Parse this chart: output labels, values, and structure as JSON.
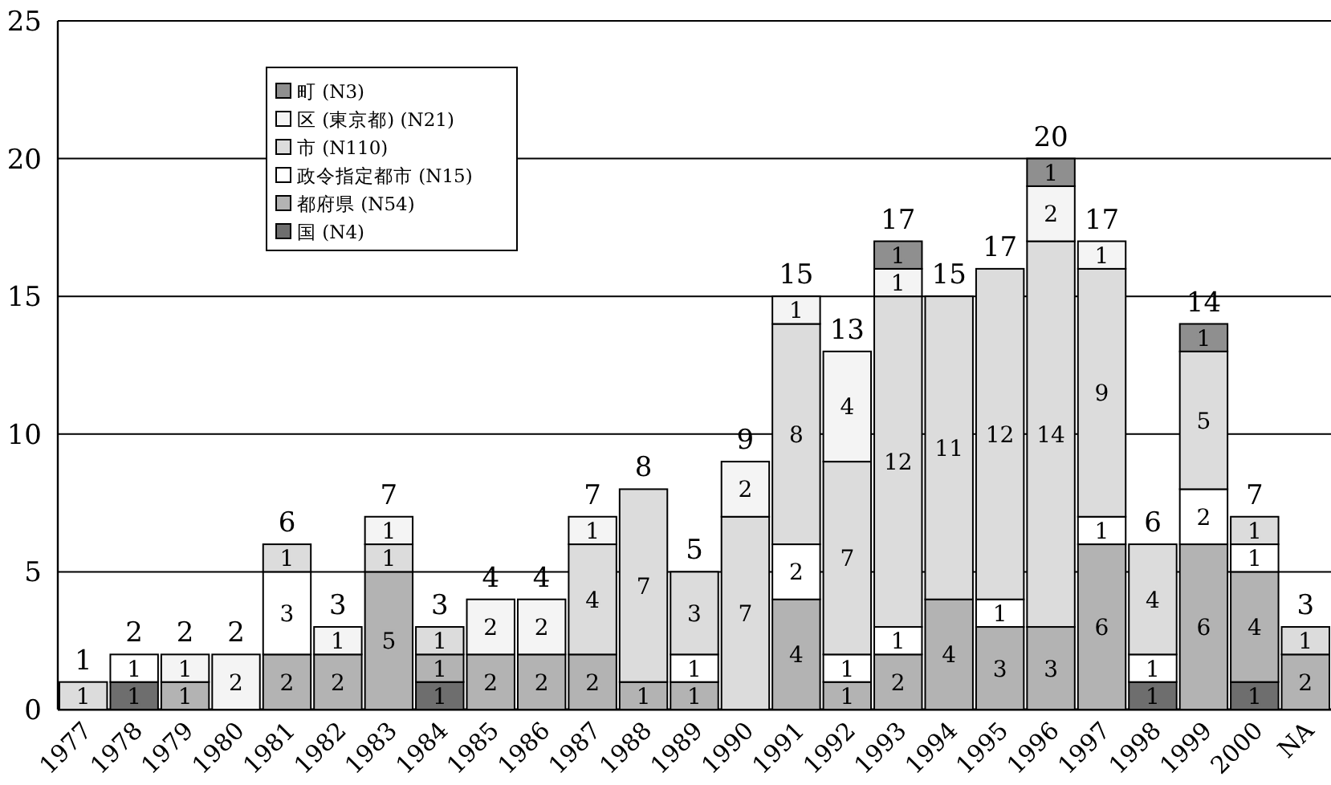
{
  "chart_data": {
    "type": "bar",
    "stacked": true,
    "categories": [
      "1977",
      "1978",
      "1979",
      "1980",
      "1981",
      "1982",
      "1983",
      "1984",
      "1985",
      "1986",
      "1987",
      "1988",
      "1989",
      "1990",
      "1991",
      "1992",
      "1993",
      "1994",
      "1995",
      "1996",
      "1997",
      "1998",
      "1999",
      "2000",
      "NA"
    ],
    "series": [
      {
        "name": "国 (N4)",
        "color": "#6e6e6e",
        "values": [
          null,
          1,
          null,
          null,
          null,
          null,
          null,
          1,
          null,
          null,
          null,
          null,
          null,
          null,
          null,
          null,
          null,
          null,
          null,
          null,
          null,
          1,
          null,
          1,
          null
        ]
      },
      {
        "name": "都府県 (N54)",
        "color": "#b3b3b3",
        "values": [
          null,
          null,
          1,
          null,
          2,
          2,
          5,
          1,
          2,
          2,
          2,
          1,
          1,
          null,
          4,
          1,
          2,
          4,
          3,
          3,
          6,
          null,
          6,
          4,
          2
        ]
      },
      {
        "name": "政令指定都市 (N15)",
        "color": "#ffffff",
        "values": [
          null,
          1,
          null,
          null,
          3,
          null,
          null,
          null,
          null,
          null,
          null,
          null,
          1,
          null,
          2,
          1,
          1,
          null,
          1,
          null,
          1,
          1,
          2,
          1,
          null
        ]
      },
      {
        "name": "市 (N110)",
        "color": "#dcdcdc",
        "values": [
          1,
          null,
          null,
          null,
          1,
          null,
          1,
          1,
          null,
          null,
          4,
          7,
          3,
          7,
          8,
          7,
          12,
          11,
          12,
          14,
          9,
          4,
          5,
          1,
          1
        ]
      },
      {
        "name": "区 (東京都) (N21)",
        "color": "#f4f4f4",
        "values": [
          null,
          null,
          1,
          2,
          null,
          1,
          1,
          null,
          2,
          2,
          1,
          null,
          null,
          2,
          1,
          4,
          1,
          null,
          null,
          2,
          1,
          null,
          null,
          null,
          null
        ]
      },
      {
        "name": "町 (N3)",
        "color": "#8f8f8f",
        "values": [
          null,
          null,
          null,
          null,
          null,
          null,
          null,
          null,
          null,
          null,
          null,
          null,
          null,
          null,
          null,
          null,
          1,
          null,
          null,
          1,
          null,
          null,
          1,
          null,
          null
        ]
      }
    ],
    "totals": [
      "1",
      "2",
      "2",
      "2",
      "6",
      "3",
      "7",
      "3",
      "4",
      "4",
      "7",
      "8",
      "5",
      "9",
      "15",
      "13",
      "17",
      "15",
      "17",
      "20",
      "17",
      "6",
      "14",
      "7",
      "3"
    ],
    "data_labels": true,
    "ylim": [
      0,
      25
    ],
    "yticks": [
      0,
      5,
      10,
      15,
      20,
      25
    ],
    "grid": "y",
    "legend": "top left"
  }
}
